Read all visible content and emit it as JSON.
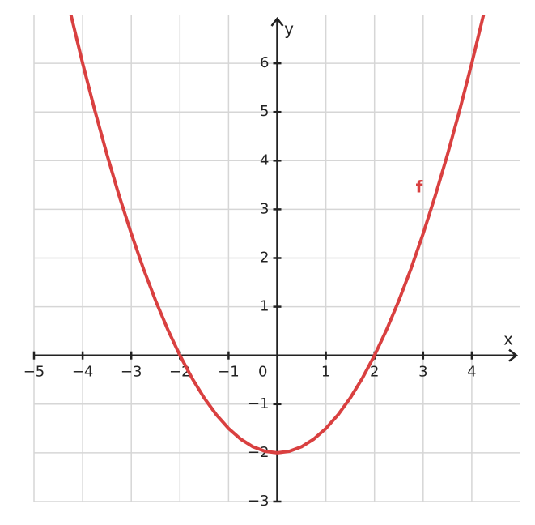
{
  "chart_data": {
    "type": "line",
    "x_label": "x",
    "y_label": "y",
    "x": [
      -4.25,
      -4,
      -3.75,
      -3.5,
      -3.25,
      -3,
      -2.75,
      -2.5,
      -2.25,
      -2,
      -1.75,
      -1.5,
      -1.25,
      -1,
      -0.75,
      -0.5,
      -0.25,
      0,
      0.25,
      0.5,
      0.75,
      1,
      1.25,
      1.5,
      1.75,
      2,
      2.25,
      2.5,
      2.75,
      3,
      3.25,
      3.5,
      3.75,
      4,
      4.25
    ],
    "series": [
      {
        "name": "f",
        "color": "#d94040",
        "values": [
          7.03125,
          6,
          5.03125,
          4.125,
          3.28125,
          2.5,
          1.78125,
          1.125,
          0.53125,
          0,
          -0.46875,
          -0.875,
          -1.21875,
          -1.5,
          -1.71875,
          -1.875,
          -1.96875,
          -2,
          -1.96875,
          -1.875,
          -1.71875,
          -1.5,
          -1.21875,
          -0.875,
          -0.46875,
          0,
          0.53125,
          1.125,
          1.78125,
          2.5,
          3.28125,
          4.125,
          5.03125,
          6,
          7.03125
        ]
      }
    ],
    "xlim": [
      -5,
      5
    ],
    "ylim": [
      -3,
      7
    ],
    "xticks": [
      {
        "value": -5,
        "label": "−5"
      },
      {
        "value": -4,
        "label": "−4"
      },
      {
        "value": -3,
        "label": "−3"
      },
      {
        "value": -2,
        "label": "−2"
      },
      {
        "value": -1,
        "label": "−1"
      },
      0,
      1,
      2,
      3,
      4
    ],
    "yticks": [
      {
        "value": -3,
        "label": "−3"
      },
      {
        "value": -2,
        "label": "−2"
      },
      {
        "value": -1,
        "label": "−1"
      },
      1,
      2,
      3,
      4,
      5,
      6
    ],
    "grid": true
  }
}
